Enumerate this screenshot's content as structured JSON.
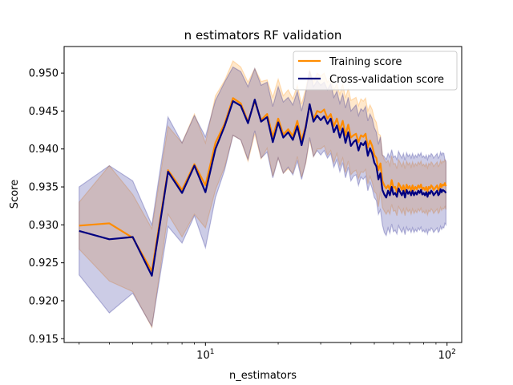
{
  "chart_data": {
    "type": "line",
    "title": "n estimators RF validation",
    "xlabel": "n_estimators",
    "ylabel": "Score",
    "xscale": "log",
    "xlim": [
      2.6,
      115
    ],
    "ylim": [
      0.9145,
      0.9535
    ],
    "yticks": [
      0.915,
      0.92,
      0.925,
      0.93,
      0.935,
      0.94,
      0.945,
      0.95
    ],
    "ytick_labels": [
      "0.915",
      "0.920",
      "0.925",
      "0.930",
      "0.935",
      "0.940",
      "0.945",
      "0.950"
    ],
    "xticks": [
      10,
      100
    ],
    "legend_position": "top-right",
    "x": [
      3,
      4,
      5,
      6,
      7,
      8,
      9,
      10,
      11,
      12,
      13,
      14,
      15,
      16,
      17,
      18,
      19,
      20,
      21,
      22,
      23,
      24,
      25,
      26,
      27,
      28,
      29,
      30,
      31,
      32,
      33,
      34,
      35,
      36,
      37,
      38,
      39,
      40,
      41,
      42,
      43,
      44,
      45,
      46,
      47,
      48,
      49,
      50,
      51,
      52,
      53,
      54,
      55,
      56,
      57,
      58,
      59,
      60,
      61,
      62,
      63,
      64,
      65,
      66,
      67,
      68,
      69,
      70,
      71,
      72,
      73,
      74,
      75,
      76,
      77,
      78,
      79,
      80,
      81,
      82,
      83,
      84,
      85,
      86,
      87,
      88,
      89,
      90,
      91,
      92,
      93,
      94,
      95,
      96,
      97,
      98,
      99
    ],
    "series": [
      {
        "name": "Training score",
        "color": "#ff8c00",
        "values": [
          0.9299,
          0.9302,
          0.9283,
          0.9239,
          0.9372,
          0.9346,
          0.938,
          0.9352,
          0.9408,
          0.9433,
          0.9467,
          0.946,
          0.9436,
          0.9463,
          0.9438,
          0.9446,
          0.9416,
          0.944,
          0.9419,
          0.9426,
          0.9417,
          0.9437,
          0.9411,
          0.943,
          0.9458,
          0.9439,
          0.945,
          0.9448,
          0.9452,
          0.944,
          0.9446,
          0.943,
          0.944,
          0.9425,
          0.9437,
          0.9418,
          0.9432,
          0.9415,
          0.9418,
          0.942,
          0.9409,
          0.9418,
          0.9416,
          0.942,
          0.9402,
          0.9411,
          0.9404,
          0.9392,
          0.9388,
          0.9372,
          0.9381,
          0.9358,
          0.9352,
          0.9348,
          0.9352,
          0.9346,
          0.9359,
          0.9349,
          0.935,
          0.9343,
          0.9355,
          0.9351,
          0.9346,
          0.9352,
          0.9343,
          0.9353,
          0.9348,
          0.9351,
          0.9345,
          0.9352,
          0.9346,
          0.935,
          0.9347,
          0.9352,
          0.9349,
          0.9353,
          0.9347,
          0.9349,
          0.9346,
          0.935,
          0.9344,
          0.935,
          0.9348,
          0.9352,
          0.935,
          0.9346,
          0.9348,
          0.935,
          0.9352,
          0.9346,
          0.9348,
          0.9354,
          0.935,
          0.9353,
          0.9352,
          0.9355,
          0.9351
        ],
        "upper": [
          0.933,
          0.9378,
          0.934,
          0.9295,
          0.943,
          0.9408,
          0.9446,
          0.9408,
          0.947,
          0.949,
          0.9516,
          0.9508,
          0.9488,
          0.9506,
          0.9489,
          0.9491,
          0.9468,
          0.9492,
          0.947,
          0.9478,
          0.9466,
          0.9484,
          0.9459,
          0.9479,
          0.9504,
          0.9488,
          0.95,
          0.9496,
          0.95,
          0.9488,
          0.9494,
          0.9478,
          0.9486,
          0.9472,
          0.9486,
          0.9467,
          0.948,
          0.9464,
          0.9466,
          0.9468,
          0.9457,
          0.9466,
          0.9463,
          0.9467,
          0.945,
          0.9458,
          0.9452,
          0.944,
          0.9435,
          0.942,
          0.9418,
          0.9393,
          0.9386,
          0.9382,
          0.9385,
          0.9378,
          0.9391,
          0.938,
          0.9381,
          0.9374,
          0.9386,
          0.9382,
          0.9377,
          0.9383,
          0.9374,
          0.9384,
          0.9379,
          0.9382,
          0.9376,
          0.9383,
          0.9377,
          0.9381,
          0.9378,
          0.9383,
          0.938,
          0.9384,
          0.9378,
          0.938,
          0.9377,
          0.9381,
          0.9375,
          0.9381,
          0.9379,
          0.9383,
          0.9381,
          0.9377,
          0.9379,
          0.9381,
          0.9383,
          0.9377,
          0.9379,
          0.9385,
          0.9381,
          0.9384,
          0.9383,
          0.9386,
          0.9382
        ],
        "lower": [
          0.9268,
          0.9226,
          0.9212,
          0.9165,
          0.9314,
          0.9284,
          0.9314,
          0.9296,
          0.9346,
          0.9376,
          0.9418,
          0.9412,
          0.9384,
          0.942,
          0.9387,
          0.9401,
          0.9364,
          0.9388,
          0.9368,
          0.9374,
          0.9368,
          0.939,
          0.9363,
          0.9381,
          0.9412,
          0.939,
          0.94,
          0.94,
          0.9404,
          0.9392,
          0.9398,
          0.9382,
          0.9394,
          0.9378,
          0.9388,
          0.9369,
          0.9384,
          0.9366,
          0.937,
          0.9372,
          0.9361,
          0.937,
          0.9369,
          0.9373,
          0.9354,
          0.9364,
          0.9356,
          0.9344,
          0.9341,
          0.9324,
          0.9344,
          0.9323,
          0.9318,
          0.9314,
          0.9319,
          0.9314,
          0.9327,
          0.9318,
          0.9319,
          0.9312,
          0.9324,
          0.932,
          0.9315,
          0.9321,
          0.9312,
          0.9322,
          0.9317,
          0.932,
          0.9314,
          0.9321,
          0.9315,
          0.9319,
          0.9316,
          0.9321,
          0.9318,
          0.9322,
          0.9316,
          0.9318,
          0.9315,
          0.9319,
          0.9313,
          0.9319,
          0.9317,
          0.9321,
          0.9319,
          0.9315,
          0.9317,
          0.9319,
          0.9321,
          0.9315,
          0.9317,
          0.9323,
          0.9319,
          0.9322,
          0.9321,
          0.9324,
          0.932
        ]
      },
      {
        "name": "Cross-validation score",
        "color": "#000080",
        "values": [
          0.9292,
          0.9281,
          0.9284,
          0.9233,
          0.937,
          0.9342,
          0.9378,
          0.9343,
          0.94,
          0.943,
          0.9463,
          0.9457,
          0.9434,
          0.9465,
          0.9436,
          0.9442,
          0.9409,
          0.9435,
          0.9415,
          0.9422,
          0.9412,
          0.943,
          0.9405,
          0.9428,
          0.9459,
          0.9436,
          0.9444,
          0.9438,
          0.9443,
          0.9433,
          0.944,
          0.9422,
          0.9431,
          0.9415,
          0.9427,
          0.9408,
          0.9422,
          0.9404,
          0.9409,
          0.9412,
          0.9398,
          0.9408,
          0.9405,
          0.941,
          0.9391,
          0.9401,
          0.9394,
          0.9382,
          0.9377,
          0.936,
          0.9368,
          0.9346,
          0.934,
          0.9336,
          0.9345,
          0.9339,
          0.935,
          0.934,
          0.9342,
          0.9337,
          0.9348,
          0.9343,
          0.9339,
          0.9345,
          0.9336,
          0.9346,
          0.9341,
          0.9344,
          0.9339,
          0.9345,
          0.9339,
          0.9343,
          0.934,
          0.9345,
          0.9342,
          0.9346,
          0.934,
          0.9342,
          0.9339,
          0.9343,
          0.9337,
          0.9343,
          0.9341,
          0.9345,
          0.9343,
          0.9339,
          0.9341,
          0.9343,
          0.9345,
          0.9339,
          0.9341,
          0.9347,
          0.9343,
          0.9346,
          0.9345,
          0.9344,
          0.9342
        ],
        "upper": [
          0.935,
          0.9378,
          0.9358,
          0.93,
          0.9442,
          0.9408,
          0.9444,
          0.9416,
          0.9464,
          0.9488,
          0.9508,
          0.9502,
          0.9482,
          0.9506,
          0.9484,
          0.9488,
          0.9456,
          0.9482,
          0.9462,
          0.9468,
          0.9458,
          0.9476,
          0.945,
          0.9474,
          0.9503,
          0.9482,
          0.949,
          0.9484,
          0.9488,
          0.9478,
          0.9486,
          0.9468,
          0.9476,
          0.946,
          0.9472,
          0.9454,
          0.9468,
          0.945,
          0.9454,
          0.9458,
          0.9444,
          0.9453,
          0.945,
          0.9456,
          0.9437,
          0.9446,
          0.944,
          0.9428,
          0.9422,
          0.9406,
          0.9416,
          0.9392,
          0.939,
          0.9386,
          0.9394,
          0.9389,
          0.9399,
          0.9389,
          0.9391,
          0.9386,
          0.9397,
          0.9392,
          0.9388,
          0.9394,
          0.9385,
          0.9395,
          0.939,
          0.9393,
          0.9388,
          0.9394,
          0.9388,
          0.9392,
          0.9389,
          0.9394,
          0.9391,
          0.9395,
          0.9389,
          0.9391,
          0.9388,
          0.9392,
          0.9386,
          0.9392,
          0.939,
          0.9394,
          0.9392,
          0.9388,
          0.939,
          0.9392,
          0.9394,
          0.9388,
          0.939,
          0.9396,
          0.9392,
          0.9395,
          0.9394,
          0.9386,
          0.9384
        ],
        "lower": [
          0.9234,
          0.9184,
          0.921,
          0.9166,
          0.9298,
          0.9276,
          0.9312,
          0.927,
          0.9336,
          0.9372,
          0.9418,
          0.9412,
          0.9386,
          0.9424,
          0.9388,
          0.9396,
          0.9362,
          0.9388,
          0.9368,
          0.9376,
          0.9366,
          0.9384,
          0.936,
          0.9382,
          0.9415,
          0.939,
          0.9398,
          0.9392,
          0.9398,
          0.9388,
          0.9394,
          0.9376,
          0.9386,
          0.937,
          0.9382,
          0.9362,
          0.9376,
          0.9358,
          0.9364,
          0.9366,
          0.9352,
          0.9363,
          0.936,
          0.9364,
          0.9345,
          0.9356,
          0.9348,
          0.9336,
          0.9332,
          0.9314,
          0.932,
          0.93,
          0.929,
          0.9286,
          0.9296,
          0.9289,
          0.9301,
          0.9291,
          0.9293,
          0.9288,
          0.9299,
          0.9294,
          0.929,
          0.9296,
          0.9287,
          0.9297,
          0.9292,
          0.9295,
          0.929,
          0.9296,
          0.929,
          0.9294,
          0.9291,
          0.9296,
          0.9293,
          0.9297,
          0.9291,
          0.9293,
          0.929,
          0.9294,
          0.9288,
          0.9294,
          0.9292,
          0.9296,
          0.9294,
          0.929,
          0.9292,
          0.9294,
          0.9296,
          0.929,
          0.9292,
          0.9298,
          0.9294,
          0.9297,
          0.9296,
          0.9302,
          0.93
        ]
      }
    ]
  }
}
